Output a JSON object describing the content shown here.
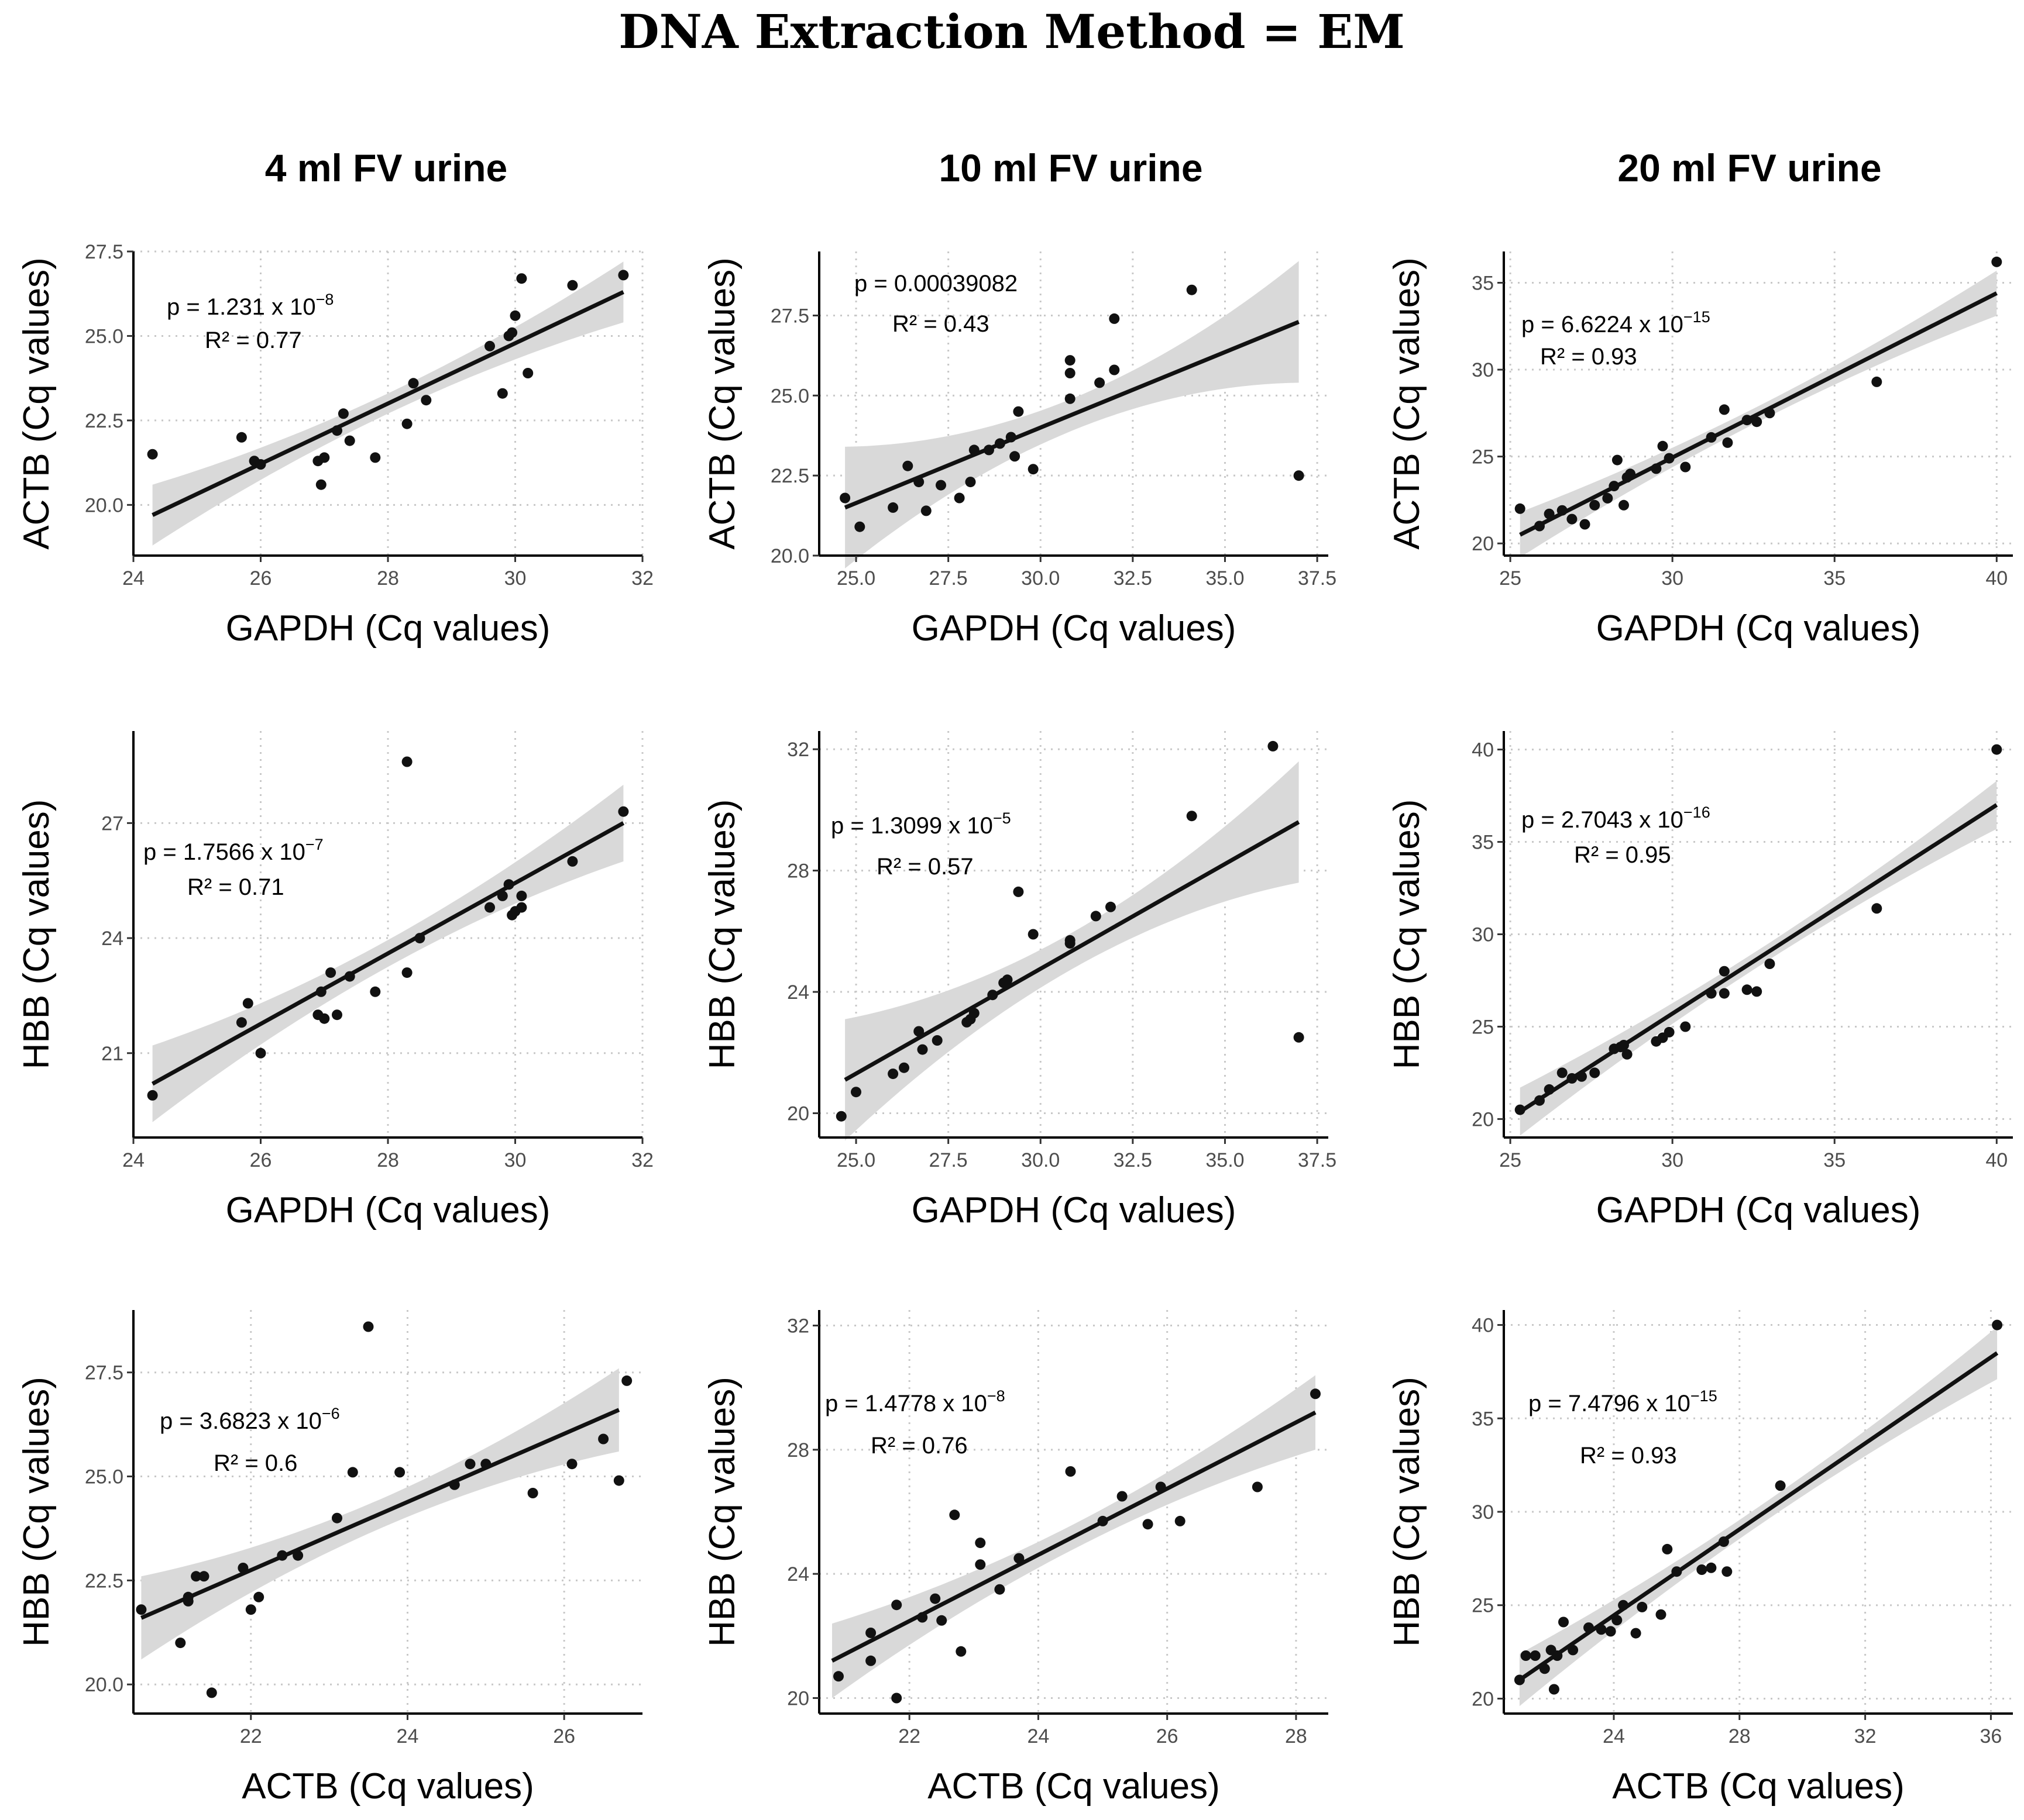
{
  "figure_title": "DNA Extraction Method = EM",
  "column_titles": [
    "4 ml FV urine",
    "10 ml FV urine",
    "20 ml FV urine"
  ],
  "chart_data": [
    {
      "type": "scatter",
      "column": 0,
      "row": 0,
      "xlabel": "GAPDH (Cq values)",
      "ylabel": "ACTB (Cq values)",
      "xlim": [
        24,
        32
      ],
      "ylim": [
        18.5,
        27.5
      ],
      "xticks": [
        24,
        26,
        28,
        30,
        32
      ],
      "yticks": [
        20.0,
        22.5,
        25.0,
        27.5
      ],
      "xtick_labels": [
        "24",
        "26",
        "28",
        "30",
        "32"
      ],
      "ytick_labels": [
        "20.0",
        "22.5",
        "25.0",
        "27.5"
      ],
      "annotation_p": "p = 1.231 x 10",
      "annotation_p_exp": "−8",
      "annotation_r2": "R² = 0.77",
      "fit": {
        "x1": 24.3,
        "y1": 19.7,
        "x2": 31.7,
        "y2": 26.3,
        "ci_edge": 0.9,
        "ci_mid": 0.3
      },
      "points": [
        [
          24.3,
          21.5
        ],
        [
          25.7,
          22.0
        ],
        [
          25.9,
          21.3
        ],
        [
          26.0,
          21.2
        ],
        [
          26.9,
          21.3
        ],
        [
          27.0,
          21.4
        ],
        [
          26.95,
          20.6
        ],
        [
          27.2,
          22.2
        ],
        [
          27.3,
          22.7
        ],
        [
          27.4,
          21.9
        ],
        [
          27.8,
          21.4
        ],
        [
          28.3,
          22.4
        ],
        [
          28.4,
          23.6
        ],
        [
          28.6,
          23.1
        ],
        [
          29.6,
          24.7
        ],
        [
          29.8,
          23.3
        ],
        [
          29.9,
          25.0
        ],
        [
          29.95,
          25.1
        ],
        [
          30.0,
          25.6
        ],
        [
          30.1,
          26.7
        ],
        [
          30.2,
          23.9
        ],
        [
          30.9,
          26.5
        ],
        [
          31.7,
          26.8
        ]
      ]
    },
    {
      "type": "scatter",
      "column": 1,
      "row": 0,
      "xlabel": "GAPDH (Cq values)",
      "ylabel": "ACTB (Cq values)",
      "xlim": [
        24,
        37.8
      ],
      "ylim": [
        20,
        29.5
      ],
      "xticks": [
        25.0,
        27.5,
        30.0,
        32.5,
        35.0,
        37.5
      ],
      "yticks": [
        20.0,
        22.5,
        25.0,
        27.5
      ],
      "xtick_labels": [
        "25.0",
        "27.5",
        "30.0",
        "32.5",
        "35.0",
        "37.5"
      ],
      "ytick_labels": [
        "20.0",
        "22.5",
        "25.0",
        "27.5"
      ],
      "annotation_p": "p = 0.00039082",
      "annotation_p_exp": "",
      "annotation_r2": "R² = 0.43",
      "fit": {
        "x1": 24.7,
        "y1": 21.5,
        "x2": 37.0,
        "y2": 27.3,
        "ci_edge": 1.9,
        "ci_mid": 0.5
      },
      "points": [
        [
          24.7,
          21.8
        ],
        [
          25.1,
          20.9
        ],
        [
          26.0,
          21.5
        ],
        [
          26.4,
          22.8
        ],
        [
          26.7,
          22.3
        ],
        [
          26.9,
          21.4
        ],
        [
          27.3,
          22.2
        ],
        [
          27.8,
          21.8
        ],
        [
          28.1,
          22.3
        ],
        [
          28.2,
          23.3
        ],
        [
          28.6,
          23.3
        ],
        [
          28.9,
          23.5
        ],
        [
          29.2,
          23.7
        ],
        [
          29.4,
          24.5
        ],
        [
          29.3,
          23.1
        ],
        [
          29.8,
          22.7
        ],
        [
          30.8,
          24.9
        ],
        [
          30.8,
          25.7
        ],
        [
          30.8,
          26.1
        ],
        [
          31.6,
          25.4
        ],
        [
          32.0,
          25.8
        ],
        [
          32.0,
          27.4
        ],
        [
          34.1,
          28.3
        ],
        [
          37.0,
          22.5
        ]
      ]
    },
    {
      "type": "scatter",
      "column": 2,
      "row": 0,
      "xlabel": "GAPDH (Cq values)",
      "ylabel": "ACTB (Cq values)",
      "xlim": [
        24.8,
        40.5
      ],
      "ylim": [
        19.3,
        36.8
      ],
      "xticks": [
        25,
        30,
        35,
        40
      ],
      "yticks": [
        20,
        25,
        30,
        35
      ],
      "xtick_labels": [
        "25",
        "30",
        "35",
        "40"
      ],
      "ytick_labels": [
        "20",
        "25",
        "30",
        "35"
      ],
      "annotation_p": "p = 6.6224 x 10",
      "annotation_p_exp": "−15",
      "annotation_r2": "R² = 0.93",
      "fit": {
        "x1": 25.3,
        "y1": 20.5,
        "x2": 40.0,
        "y2": 34.4,
        "ci_edge": 1.3,
        "ci_mid": 0.45
      },
      "points": [
        [
          25.3,
          22.0
        ],
        [
          25.9,
          21.0
        ],
        [
          26.2,
          21.7
        ],
        [
          26.6,
          21.9
        ],
        [
          26.9,
          21.4
        ],
        [
          27.3,
          21.1
        ],
        [
          27.6,
          22.2
        ],
        [
          28.0,
          22.6
        ],
        [
          28.2,
          23.3
        ],
        [
          28.3,
          24.8
        ],
        [
          28.5,
          22.2
        ],
        [
          28.6,
          23.8
        ],
        [
          28.7,
          24.0
        ],
        [
          29.5,
          24.3
        ],
        [
          29.7,
          25.6
        ],
        [
          29.9,
          24.9
        ],
        [
          30.4,
          24.4
        ],
        [
          31.2,
          26.1
        ],
        [
          31.6,
          27.7
        ],
        [
          31.7,
          25.8
        ],
        [
          32.3,
          27.1
        ],
        [
          32.6,
          27.0
        ],
        [
          33.0,
          27.5
        ],
        [
          36.3,
          29.3
        ],
        [
          40.0,
          36.2
        ]
      ]
    },
    {
      "type": "scatter",
      "column": 0,
      "row": 1,
      "xlabel": "GAPDH (Cq values)",
      "ylabel": "HBB (Cq values)",
      "xlim": [
        24,
        32
      ],
      "ylim": [
        18.8,
        29.4
      ],
      "xticks": [
        24,
        26,
        28,
        30,
        32
      ],
      "yticks": [
        21,
        24,
        27
      ],
      "xtick_labels": [
        "24",
        "26",
        "28",
        "30",
        "32"
      ],
      "ytick_labels": [
        "21",
        "24",
        "27"
      ],
      "annotation_p": "p = 1.7566 x 10",
      "annotation_p_exp": "−7",
      "annotation_r2": "R² = 0.71",
      "fit": {
        "x1": 24.3,
        "y1": 20.2,
        "x2": 31.7,
        "y2": 27.0,
        "ci_edge": 1.0,
        "ci_mid": 0.35
      },
      "points": [
        [
          24.3,
          19.9
        ],
        [
          25.7,
          21.8
        ],
        [
          25.8,
          22.3
        ],
        [
          26.0,
          21.0
        ],
        [
          26.9,
          22.0
        ],
        [
          27.0,
          21.9
        ],
        [
          26.95,
          22.6
        ],
        [
          27.1,
          23.1
        ],
        [
          27.2,
          22.0
        ],
        [
          27.4,
          23.0
        ],
        [
          27.8,
          22.6
        ],
        [
          28.3,
          28.6
        ],
        [
          28.3,
          23.1
        ],
        [
          28.5,
          24.0
        ],
        [
          29.6,
          24.8
        ],
        [
          29.8,
          25.1
        ],
        [
          29.9,
          25.4
        ],
        [
          29.95,
          24.6
        ],
        [
          30.0,
          24.7
        ],
        [
          30.1,
          24.8
        ],
        [
          30.1,
          25.1
        ],
        [
          30.9,
          26.0
        ],
        [
          31.7,
          27.3
        ]
      ]
    },
    {
      "type": "scatter",
      "column": 1,
      "row": 1,
      "xlabel": "GAPDH (Cq values)",
      "ylabel": "HBB (Cq values)",
      "xlim": [
        24,
        37.8
      ],
      "ylim": [
        19.2,
        32.6
      ],
      "xticks": [
        25.0,
        27.5,
        30.0,
        32.5,
        35.0,
        37.5
      ],
      "yticks": [
        20,
        24,
        28,
        32
      ],
      "xtick_labels": [
        "25.0",
        "27.5",
        "30.0",
        "32.5",
        "35.0",
        "37.5"
      ],
      "ytick_labels": [
        "20",
        "24",
        "28",
        "32"
      ],
      "annotation_p": "p = 1.3099 x 10",
      "annotation_p_exp": "−5",
      "annotation_r2": "R² = 0.57",
      "fit": {
        "x1": 24.7,
        "y1": 21.1,
        "x2": 37.0,
        "y2": 29.6,
        "ci_edge": 2.0,
        "ci_mid": 0.6
      },
      "points": [
        [
          24.6,
          19.9
        ],
        [
          25.0,
          20.7
        ],
        [
          26.0,
          21.3
        ],
        [
          26.3,
          21.5
        ],
        [
          26.7,
          22.7
        ],
        [
          26.8,
          22.1
        ],
        [
          27.2,
          22.4
        ],
        [
          28.0,
          23.0
        ],
        [
          28.2,
          23.3
        ],
        [
          28.1,
          23.1
        ],
        [
          28.7,
          23.9
        ],
        [
          29.0,
          24.3
        ],
        [
          29.1,
          24.4
        ],
        [
          29.4,
          27.3
        ],
        [
          29.8,
          25.9
        ],
        [
          30.8,
          25.7
        ],
        [
          30.8,
          25.6
        ],
        [
          31.5,
          26.5
        ],
        [
          31.9,
          26.8
        ],
        [
          34.1,
          29.8
        ],
        [
          36.3,
          32.1
        ],
        [
          37.0,
          22.5
        ]
      ]
    },
    {
      "type": "scatter",
      "column": 2,
      "row": 1,
      "xlabel": "GAPDH (Cq values)",
      "ylabel": "HBB (Cq values)",
      "xlim": [
        24.8,
        40.5
      ],
      "ylim": [
        19,
        41
      ],
      "xticks": [
        25,
        30,
        35,
        40
      ],
      "yticks": [
        20,
        25,
        30,
        35,
        40
      ],
      "xtick_labels": [
        "25",
        "30",
        "35",
        "40"
      ],
      "ytick_labels": [
        "20",
        "25",
        "30",
        "35",
        "40"
      ],
      "annotation_p": "p = 2.7043 x 10",
      "annotation_p_exp": "−16",
      "annotation_r2": "R² = 0.95",
      "fit": {
        "x1": 25.3,
        "y1": 20.4,
        "x2": 40.0,
        "y2": 37.0,
        "ci_edge": 1.3,
        "ci_mid": 0.45
      },
      "points": [
        [
          25.3,
          20.5
        ],
        [
          25.9,
          21.0
        ],
        [
          26.2,
          21.6
        ],
        [
          26.6,
          22.5
        ],
        [
          26.9,
          22.2
        ],
        [
          27.2,
          22.3
        ],
        [
          27.6,
          22.5
        ],
        [
          28.2,
          23.8
        ],
        [
          28.5,
          24.0
        ],
        [
          28.6,
          23.5
        ],
        [
          28.4,
          23.9
        ],
        [
          29.5,
          24.2
        ],
        [
          29.7,
          24.4
        ],
        [
          29.9,
          24.7
        ],
        [
          30.4,
          25.0
        ],
        [
          31.2,
          26.8
        ],
        [
          31.6,
          28.0
        ],
        [
          31.6,
          26.8
        ],
        [
          32.3,
          27.0
        ],
        [
          32.6,
          26.9
        ],
        [
          33.0,
          28.4
        ],
        [
          36.3,
          31.4
        ],
        [
          40.0,
          40.0
        ]
      ]
    },
    {
      "type": "scatter",
      "column": 0,
      "row": 2,
      "xlabel": "ACTB (Cq values)",
      "ylabel": "HBB (Cq values)",
      "xlim": [
        20.5,
        27.0
      ],
      "ylim": [
        19.3,
        29.0
      ],
      "xticks": [
        22,
        24,
        26
      ],
      "yticks": [
        20.0,
        22.5,
        25.0,
        27.5
      ],
      "xtick_labels": [
        "22",
        "24",
        "26"
      ],
      "ytick_labels": [
        "20.0",
        "22.5",
        "25.0",
        "27.5"
      ],
      "annotation_p": "p = 3.6823 x 10",
      "annotation_p_exp": "−6",
      "annotation_r2": "R² = 0.6",
      "fit": {
        "x1": 20.6,
        "y1": 21.6,
        "x2": 26.7,
        "y2": 26.6,
        "ci_edge": 1.0,
        "ci_mid": 0.35
      },
      "points": [
        [
          20.6,
          21.8
        ],
        [
          21.1,
          21.0
        ],
        [
          21.2,
          22.1
        ],
        [
          21.3,
          22.6
        ],
        [
          21.4,
          22.6
        ],
        [
          21.2,
          22.0
        ],
        [
          21.5,
          19.8
        ],
        [
          21.9,
          22.8
        ],
        [
          22.0,
          21.8
        ],
        [
          22.1,
          22.1
        ],
        [
          22.4,
          23.1
        ],
        [
          22.6,
          23.1
        ],
        [
          23.1,
          24.0
        ],
        [
          23.3,
          25.1
        ],
        [
          23.5,
          28.6
        ],
        [
          23.9,
          25.1
        ],
        [
          24.6,
          24.8
        ],
        [
          24.8,
          25.3
        ],
        [
          25.0,
          25.3
        ],
        [
          25.6,
          24.6
        ],
        [
          26.1,
          25.3
        ],
        [
          26.5,
          25.9
        ],
        [
          26.7,
          24.9
        ],
        [
          26.8,
          27.3
        ]
      ]
    },
    {
      "type": "scatter",
      "column": 1,
      "row": 2,
      "xlabel": "ACTB (Cq values)",
      "ylabel": "HBB (Cq values)",
      "xlim": [
        20.6,
        28.5
      ],
      "ylim": [
        19.5,
        32.5
      ],
      "xticks": [
        22,
        24,
        26,
        28
      ],
      "yticks": [
        20,
        24,
        28,
        32
      ],
      "xtick_labels": [
        "22",
        "24",
        "26",
        "28"
      ],
      "ytick_labels": [
        "20",
        "24",
        "28",
        "32"
      ],
      "annotation_p": "p = 1.4778 x 10",
      "annotation_p_exp": "−8",
      "annotation_r2": "R² = 0.76",
      "fit": {
        "x1": 20.8,
        "y1": 21.2,
        "x2": 28.3,
        "y2": 29.2,
        "ci_edge": 1.2,
        "ci_mid": 0.4
      },
      "points": [
        [
          20.9,
          20.7
        ],
        [
          21.4,
          22.1
        ],
        [
          21.4,
          21.2
        ],
        [
          21.8,
          20.0
        ],
        [
          21.8,
          23.0
        ],
        [
          22.2,
          22.6
        ],
        [
          22.4,
          23.2
        ],
        [
          22.5,
          22.5
        ],
        [
          22.7,
          25.9
        ],
        [
          22.8,
          21.5
        ],
        [
          23.1,
          25.0
        ],
        [
          23.1,
          24.3
        ],
        [
          23.4,
          23.5
        ],
        [
          23.7,
          24.5
        ],
        [
          24.5,
          27.3
        ],
        [
          25.0,
          25.7
        ],
        [
          25.3,
          26.5
        ],
        [
          25.7,
          25.6
        ],
        [
          25.9,
          26.8
        ],
        [
          26.2,
          25.7
        ],
        [
          27.4,
          26.8
        ],
        [
          28.3,
          29.8
        ]
      ]
    },
    {
      "type": "scatter",
      "column": 2,
      "row": 2,
      "xlabel": "ACTB (Cq values)",
      "ylabel": "HBB (Cq values)",
      "xlim": [
        20.5,
        36.7
      ],
      "ylim": [
        19.2,
        40.8
      ],
      "xticks": [
        24,
        28,
        32,
        36
      ],
      "yticks": [
        20,
        25,
        30,
        35,
        40
      ],
      "xtick_labels": [
        "24",
        "28",
        "32",
        "36"
      ],
      "ytick_labels": [
        "20",
        "25",
        "30",
        "35",
        "40"
      ],
      "annotation_p": "p = 7.4796 x 10",
      "annotation_p_exp": "−15",
      "annotation_r2": "R² = 0.93",
      "fit": {
        "x1": 21.0,
        "y1": 21.0,
        "x2": 36.2,
        "y2": 38.5,
        "ci_edge": 1.4,
        "ci_mid": 0.5
      },
      "points": [
        [
          21.0,
          21.0
        ],
        [
          21.2,
          22.3
        ],
        [
          21.5,
          22.3
        ],
        [
          21.8,
          21.6
        ],
        [
          22.0,
          22.6
        ],
        [
          22.1,
          20.5
        ],
        [
          22.2,
          22.3
        ],
        [
          22.4,
          24.1
        ],
        [
          22.7,
          22.6
        ],
        [
          23.2,
          23.8
        ],
        [
          23.6,
          23.7
        ],
        [
          23.9,
          23.6
        ],
        [
          24.1,
          24.2
        ],
        [
          24.3,
          25.0
        ],
        [
          24.7,
          23.5
        ],
        [
          24.9,
          24.9
        ],
        [
          25.5,
          24.5
        ],
        [
          25.7,
          28.0
        ],
        [
          26.0,
          26.8
        ],
        [
          26.8,
          26.9
        ],
        [
          27.1,
          27.0
        ],
        [
          27.5,
          28.4
        ],
        [
          27.6,
          26.8
        ],
        [
          29.3,
          31.4
        ],
        [
          36.2,
          40.0
        ]
      ]
    }
  ]
}
